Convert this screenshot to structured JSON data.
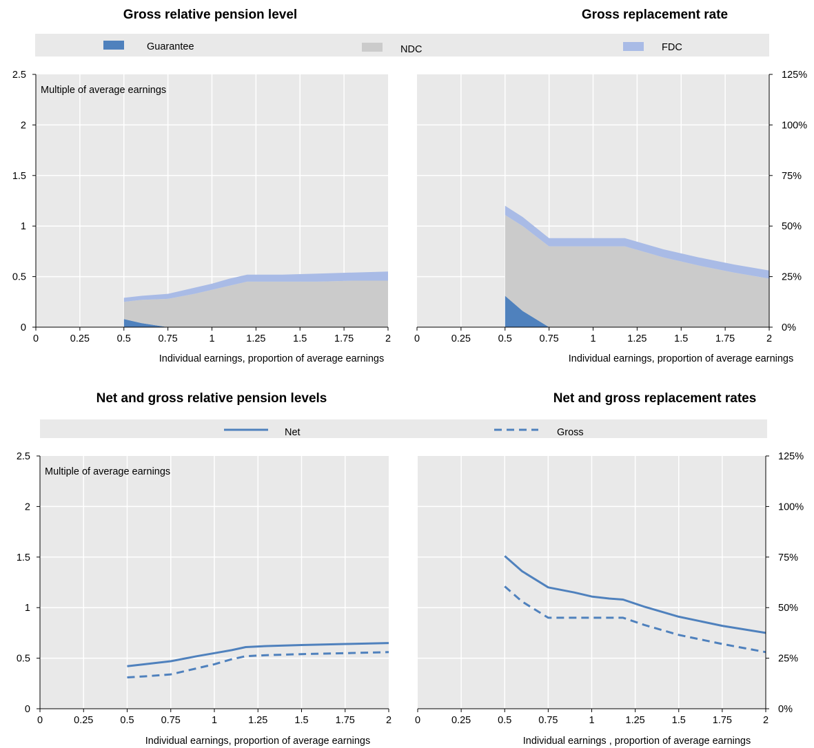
{
  "colors": {
    "guarantee": "#4f81bd",
    "ndc": "#cbcbcb",
    "fdc": "#a9bbe6",
    "line": "#4f81bd",
    "plot_bg": "#e9e9e9",
    "legend_bg": "#e9e9e9",
    "grid": "#ffffff"
  },
  "legends": {
    "top": [
      {
        "label": "Guarantee",
        "color": "#4f81bd",
        "style": "box"
      },
      {
        "label": "NDC",
        "color": "#cbcbcb",
        "style": "box"
      },
      {
        "label": "FDC",
        "color": "#a9bbe6",
        "style": "box"
      }
    ],
    "bottom": [
      {
        "label": "Net",
        "color": "#4f81bd",
        "style": "solid"
      },
      {
        "label": "Gross",
        "color": "#4f81bd",
        "style": "dashed"
      }
    ]
  },
  "chart_data": [
    {
      "id": "tl",
      "type": "area",
      "title": "Gross relative pension level",
      "annotation": "Multiple of average earnings",
      "xlabel": "Individual earnings, proportion of average earnings",
      "ylabel": "",
      "xlim": [
        0,
        2
      ],
      "ylim": [
        0,
        2.5
      ],
      "xticks": [
        "0",
        "0.25",
        "0.5",
        "0.75",
        "1",
        "1.25",
        "1.5",
        "1.75",
        "2"
      ],
      "yticks": [
        "0",
        "0.5",
        "1",
        "1.5",
        "2",
        "2.5"
      ],
      "y_axis_side": "left",
      "grid": true,
      "stacked": true,
      "x": [
        0.5,
        0.6,
        0.75,
        0.9,
        1.0,
        1.1,
        1.2,
        1.4,
        1.6,
        1.8,
        2.0
      ],
      "series": [
        {
          "name": "Guarantee",
          "values": [
            0.08,
            0.04,
            0.0,
            0.0,
            0.0,
            0.0,
            0.0,
            0.0,
            0.0,
            0.0,
            0.0
          ]
        },
        {
          "name": "NDC",
          "values": [
            0.17,
            0.23,
            0.28,
            0.33,
            0.37,
            0.41,
            0.45,
            0.45,
            0.45,
            0.46,
            0.46
          ]
        },
        {
          "name": "FDC",
          "values": [
            0.04,
            0.04,
            0.05,
            0.06,
            0.06,
            0.07,
            0.07,
            0.07,
            0.08,
            0.08,
            0.09
          ]
        }
      ]
    },
    {
      "id": "tr",
      "type": "area",
      "title": "Gross replacement rate",
      "annotation": "",
      "xlabel": "Individual earnings, proportion of average earnings",
      "ylabel": "",
      "xlim": [
        0,
        2
      ],
      "ylim": [
        0,
        125
      ],
      "xticks": [
        "0",
        "0.25",
        "0.5",
        "0.75",
        "1",
        "1.25",
        "1.5",
        "1.75",
        "2"
      ],
      "yticks": [
        "0%",
        "25%",
        "50%",
        "75%",
        "100%",
        "125%"
      ],
      "y_axis_side": "right",
      "grid": true,
      "stacked": true,
      "x": [
        0.5,
        0.6,
        0.75,
        0.9,
        1.0,
        1.1,
        1.18,
        1.3,
        1.4,
        1.6,
        1.8,
        2.0
      ],
      "series": [
        {
          "name": "Guarantee",
          "values": [
            15.5,
            8.0,
            0.0,
            0.0,
            0.0,
            0.0,
            0.0,
            0.0,
            0.0,
            0.0,
            0.0,
            0.0
          ]
        },
        {
          "name": "NDC",
          "values": [
            40.0,
            42.0,
            40.0,
            40.0,
            40.0,
            40.0,
            40.0,
            37.0,
            34.5,
            30.5,
            27.0,
            24.0
          ]
        },
        {
          "name": "FDC",
          "values": [
            4.5,
            4.5,
            4.0,
            4.0,
            4.0,
            4.0,
            4.0,
            4.0,
            4.0,
            4.0,
            4.0,
            4.0
          ]
        }
      ]
    },
    {
      "id": "bl",
      "type": "line",
      "title": "Net and gross relative pension levels",
      "annotation": "Multiple of average earnings",
      "xlabel": "Individual earnings, proportion of average earnings",
      "ylabel": "",
      "xlim": [
        0,
        2
      ],
      "ylim": [
        0,
        2.5
      ],
      "xticks": [
        "0",
        "0.25",
        "0.5",
        "0.75",
        "1",
        "1.25",
        "1.5",
        "1.75",
        "2"
      ],
      "yticks": [
        "0",
        "0.5",
        "1",
        "1.5",
        "2",
        "2.5"
      ],
      "y_axis_side": "left",
      "grid": true,
      "x": [
        0.5,
        0.6,
        0.75,
        0.9,
        1.0,
        1.1,
        1.18,
        1.3,
        1.5,
        1.75,
        2.0
      ],
      "series": [
        {
          "name": "Net",
          "style": "solid",
          "values": [
            0.42,
            0.44,
            0.47,
            0.52,
            0.55,
            0.58,
            0.61,
            0.62,
            0.63,
            0.64,
            0.65
          ]
        },
        {
          "name": "Gross",
          "style": "dashed",
          "values": [
            0.31,
            0.32,
            0.34,
            0.4,
            0.44,
            0.49,
            0.52,
            0.53,
            0.54,
            0.55,
            0.56
          ]
        }
      ]
    },
    {
      "id": "br",
      "type": "line",
      "title": "Net and gross replacement rates",
      "annotation": "",
      "xlabel": "Individual earnings , proportion of average earnings",
      "ylabel": "",
      "xlim": [
        0,
        2
      ],
      "ylim": [
        0,
        125
      ],
      "xticks": [
        "0",
        "0.25",
        "0.5",
        "0.75",
        "1",
        "1.25",
        "1.5",
        "1.75",
        "2"
      ],
      "yticks": [
        "0%",
        "25%",
        "50%",
        "75%",
        "100%",
        "125%"
      ],
      "y_axis_side": "right",
      "grid": true,
      "x": [
        0.5,
        0.6,
        0.75,
        0.9,
        1.0,
        1.1,
        1.18,
        1.3,
        1.5,
        1.75,
        2.0
      ],
      "series": [
        {
          "name": "Net",
          "style": "solid",
          "values": [
            75.5,
            68.0,
            60.0,
            57.5,
            55.5,
            54.5,
            54.0,
            50.5,
            45.5,
            41.0,
            37.5
          ]
        },
        {
          "name": "Gross",
          "style": "dashed",
          "values": [
            60.5,
            53.0,
            45.0,
            45.0,
            45.0,
            45.0,
            45.0,
            41.5,
            36.5,
            32.0,
            28.0
          ]
        }
      ]
    }
  ]
}
